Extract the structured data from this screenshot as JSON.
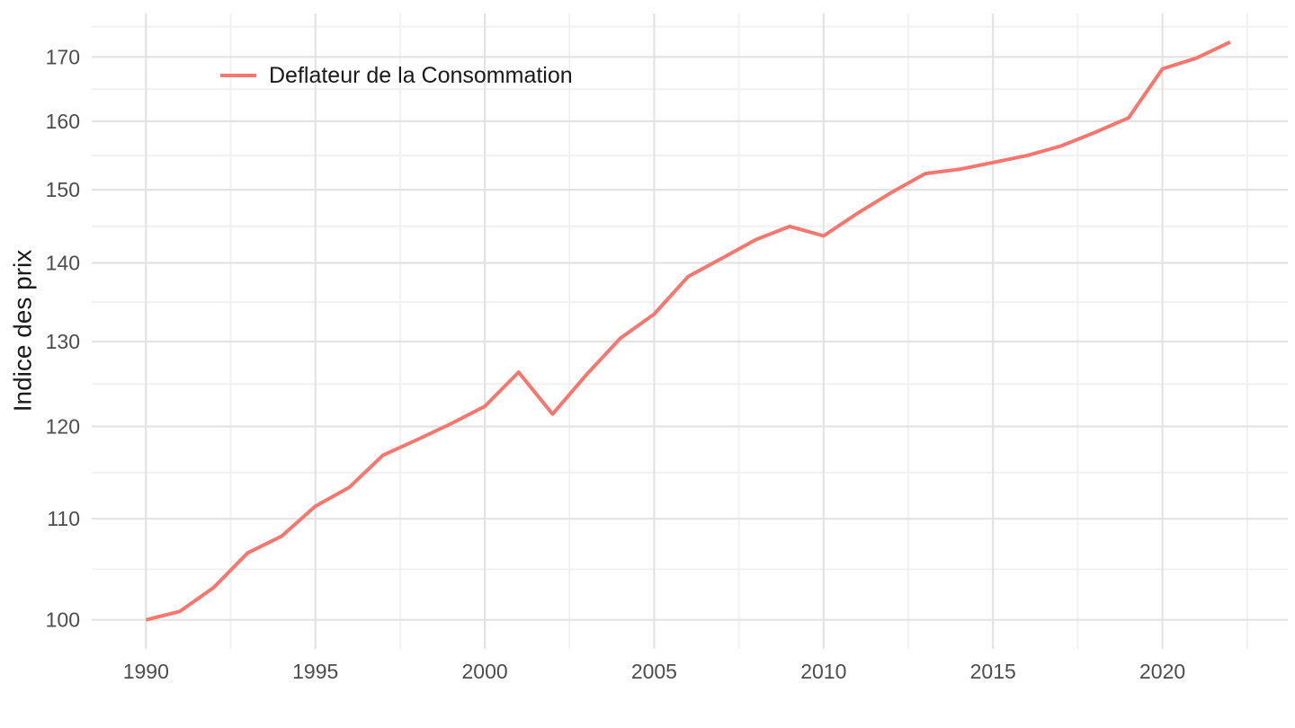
{
  "figure": {
    "background": "#FFFFFF",
    "y_axis_title": "Indice des prix",
    "legend": {
      "label": "Deflateur de la Consommation",
      "position": "inside-top-left"
    }
  },
  "chart_data": {
    "type": "line",
    "title": "",
    "xlabel": "",
    "ylabel": "Indice des prix",
    "y_scale": "log",
    "grid": true,
    "legend_position": "inside-top-left",
    "x": [
      1990,
      1991,
      1992,
      1993,
      1994,
      1995,
      1996,
      1997,
      1998,
      1999,
      2000,
      2001,
      2002,
      2003,
      2004,
      2005,
      2006,
      2007,
      2008,
      2009,
      2010,
      2011,
      2012,
      2013,
      2014,
      2015,
      2016,
      2017,
      2018,
      2019,
      2020,
      2021,
      2022
    ],
    "series": [
      {
        "name": "Deflateur de la Consommation",
        "color": "#F8766D",
        "values": [
          100.0,
          100.8,
          103.1,
          106.5,
          108.2,
          111.3,
          113.3,
          116.8,
          118.5,
          120.3,
          122.3,
          126.3,
          121.4,
          126.0,
          130.4,
          133.4,
          138.2,
          140.6,
          143.1,
          144.9,
          143.6,
          146.7,
          149.6,
          152.3,
          152.9,
          153.9,
          154.9,
          156.3,
          158.3,
          160.5,
          168.1,
          169.8,
          172.4
        ]
      }
    ],
    "x_ticks": [
      1990,
      1995,
      2000,
      2005,
      2010,
      2015,
      2020
    ],
    "x_minor_ticks": [
      1992.5,
      1997.5,
      2002.5,
      2007.5,
      2012.5,
      2017.5,
      2022.5
    ],
    "y_ticks": [
      100,
      110,
      120,
      130,
      140,
      150,
      160,
      170
    ],
    "y_minor_ticks": [
      104.88,
      114.89,
      124.9,
      134.91,
      144.91,
      154.92,
      164.92,
      174.93
    ],
    "xlim": [
      1988.4,
      2023.7
    ],
    "ylim": [
      97.3,
      177.1
    ],
    "colors": {
      "grid_major": "#E3E3E3",
      "grid_minor": "#F0F0F0",
      "tick_label": "#4D4D4D",
      "axis_title": "#1A1A1A"
    }
  }
}
